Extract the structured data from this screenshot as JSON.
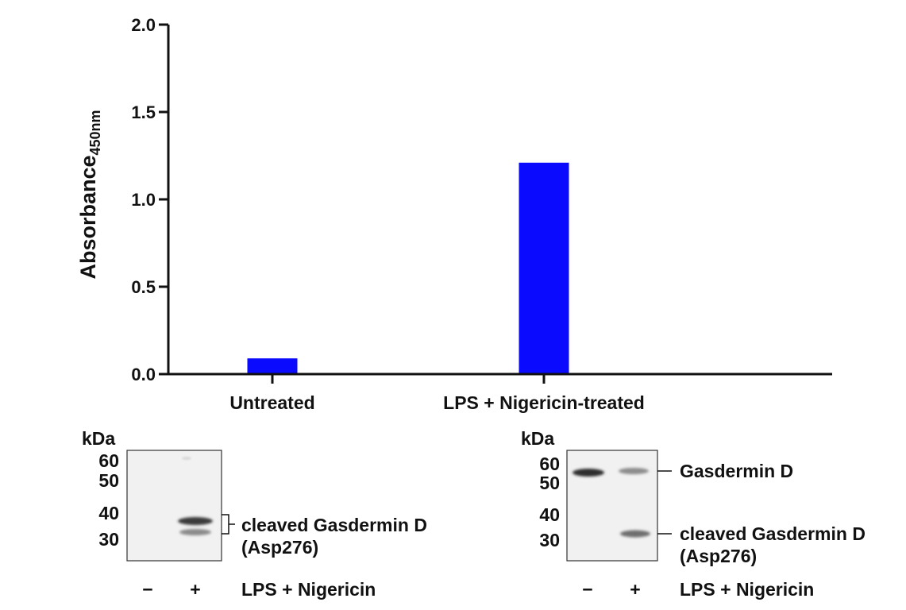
{
  "chart_data": {
    "type": "bar",
    "categories": [
      "Untreated",
      "LPS + Nigericin-treated"
    ],
    "values": [
      0.09,
      1.21
    ],
    "title": "",
    "xlabel": "",
    "ylabel": "Absorbance",
    "ylabel_subscript": "450nm",
    "ylim": [
      0,
      2.0
    ],
    "yticks": [
      "0.0",
      "0.5",
      "1.0",
      "1.5",
      "2.0"
    ],
    "bar_color": "#0a0aff",
    "grid": false,
    "legend": "none"
  },
  "blots": {
    "left": {
      "unit_label": "kDa",
      "markers": [
        "60",
        "50",
        "40",
        "30"
      ],
      "band_label_line1": "cleaved Gasdermin D",
      "band_label_line2": "(Asp276)",
      "lane_minus": "−",
      "lane_plus": "+",
      "treatment_label": "LPS + Nigericin"
    },
    "right": {
      "unit_label": "kDa",
      "markers": [
        "60",
        "50",
        "40",
        "30"
      ],
      "band_label_full": "Gasdermin D",
      "band_label_line1": "cleaved Gasdermin D",
      "band_label_line2": "(Asp276)",
      "lane_minus": "−",
      "lane_plus": "+",
      "treatment_label": "LPS + Nigericin"
    }
  }
}
